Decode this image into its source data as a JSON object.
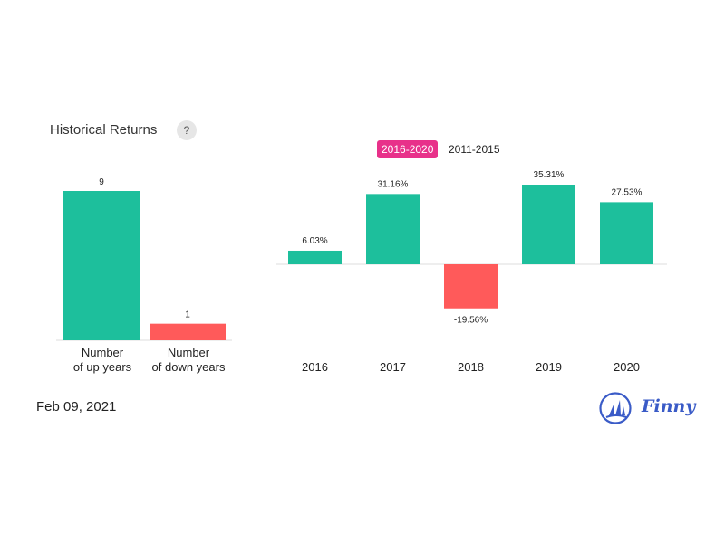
{
  "header": {
    "title": "Historical Returns",
    "help_icon_text": "?"
  },
  "tabs": [
    {
      "label": "2016-2020",
      "active": true
    },
    {
      "label": "2011-2015",
      "active": false
    }
  ],
  "footer": {
    "date": "Feb 09, 2021",
    "brand": "Finny"
  },
  "colors": {
    "up": "#1dbf9c",
    "down": "#ff5a5a",
    "tab_active": "#e8318a",
    "brand": "#3a5bc7"
  },
  "chart_data": [
    {
      "type": "bar",
      "categories": [
        [
          "Number",
          "of up years"
        ],
        [
          "Number",
          "of down years"
        ]
      ],
      "values": [
        9,
        1
      ],
      "labels": [
        "9",
        "1"
      ],
      "ylim": [
        0,
        9
      ]
    },
    {
      "type": "bar",
      "categories": [
        "2016",
        "2017",
        "2018",
        "2019",
        "2020"
      ],
      "values": [
        6.03,
        31.16,
        -19.56,
        35.31,
        27.53
      ],
      "labels": [
        "6.03%",
        "31.16%",
        "-19.56%",
        "35.31%",
        "27.53%"
      ],
      "ylim": [
        -19.56,
        35.31
      ]
    }
  ]
}
